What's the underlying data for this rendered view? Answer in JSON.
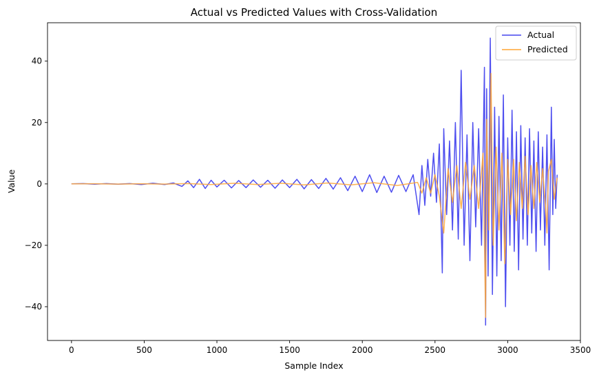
{
  "chart_data": {
    "type": "line",
    "title": "Actual vs Predicted Values with Cross-Validation",
    "xlabel": "Sample Index",
    "ylabel": "Value",
    "xlim": [
      -165,
      3500
    ],
    "ylim": [
      -51,
      52.5
    ],
    "xticks": [
      0,
      500,
      1000,
      1500,
      2000,
      2500,
      3000,
      3500
    ],
    "yticks": [
      -40,
      -20,
      0,
      20,
      40
    ],
    "xtick_labels": [
      "0",
      "500",
      "1000",
      "1500",
      "2000",
      "2500",
      "3000",
      "3500"
    ],
    "ytick_labels": [
      "−40",
      "−20",
      "0",
      "20",
      "40"
    ],
    "legend_position": "top-right",
    "grid": false,
    "series": [
      {
        "name": "Actual",
        "color": "#4444ee",
        "x": [
          0,
          80,
          160,
          240,
          320,
          400,
          480,
          560,
          640,
          700,
          760,
          800,
          840,
          880,
          920,
          960,
          1000,
          1050,
          1100,
          1150,
          1200,
          1250,
          1300,
          1350,
          1400,
          1450,
          1500,
          1550,
          1600,
          1650,
          1700,
          1750,
          1800,
          1850,
          1900,
          1950,
          2000,
          2050,
          2100,
          2150,
          2200,
          2250,
          2300,
          2350,
          2390,
          2410,
          2430,
          2450,
          2470,
          2490,
          2510,
          2530,
          2550,
          2560,
          2580,
          2600,
          2620,
          2640,
          2660,
          2680,
          2700,
          2720,
          2740,
          2760,
          2780,
          2800,
          2820,
          2840,
          2848,
          2855,
          2865,
          2880,
          2895,
          2910,
          2925,
          2940,
          2955,
          2970,
          2985,
          3000,
          3015,
          3030,
          3045,
          3060,
          3075,
          3090,
          3105,
          3120,
          3135,
          3150,
          3165,
          3180,
          3195,
          3210,
          3225,
          3240,
          3255,
          3270,
          3285,
          3300,
          3310,
          3320,
          3330,
          3340
        ],
        "values": [
          0,
          0.1,
          -0.1,
          0.1,
          -0.1,
          0.1,
          -0.2,
          0.2,
          -0.2,
          0.3,
          -0.8,
          1.0,
          -1.2,
          1.5,
          -1.5,
          1.2,
          -1.0,
          1.2,
          -1.3,
          1.1,
          -1.2,
          1.3,
          -1.1,
          1.2,
          -1.4,
          1.3,
          -1.2,
          1.5,
          -1.6,
          1.4,
          -1.5,
          1.8,
          -1.7,
          2.0,
          -2.2,
          2.5,
          -2.5,
          3.0,
          -2.8,
          2.5,
          -2.7,
          2.8,
          -2.5,
          3.0,
          -10.0,
          6.0,
          -7.0,
          8.0,
          -4.0,
          10.0,
          -6.0,
          13.0,
          -29.0,
          18.0,
          -10.0,
          14.0,
          -15.0,
          20.0,
          -18.0,
          37.0,
          -20.0,
          16.0,
          -25.0,
          20.0,
          -14.0,
          18.0,
          -20.0,
          38.0,
          -46.0,
          31.0,
          -30.0,
          47.5,
          -36.0,
          25.0,
          -30.0,
          22.0,
          -25.0,
          29.0,
          -40.0,
          15.0,
          -20.0,
          24.0,
          -22.0,
          17.0,
          -28.0,
          19.0,
          -18.0,
          15.0,
          -20.0,
          18.0,
          -16.0,
          14.0,
          -22.0,
          17.0,
          -15.0,
          12.0,
          -20.0,
          16.0,
          -28.0,
          25.0,
          -10.0,
          14.5,
          -8.0,
          3.0
        ]
      },
      {
        "name": "Predicted",
        "color": "#ffa533",
        "x": [
          0,
          160,
          320,
          480,
          640,
          800,
          960,
          1120,
          1280,
          1440,
          1600,
          1760,
          1920,
          2080,
          2240,
          2380,
          2410,
          2440,
          2470,
          2500,
          2530,
          2560,
          2590,
          2620,
          2650,
          2680,
          2710,
          2740,
          2770,
          2800,
          2830,
          2848,
          2855,
          2870,
          2885,
          2900,
          2920,
          2940,
          2960,
          2980,
          3000,
          3020,
          3040,
          3060,
          3080,
          3100,
          3120,
          3140,
          3160,
          3180,
          3200,
          3220,
          3240,
          3260,
          3270,
          3280,
          3300,
          3320,
          3340
        ],
        "values": [
          0,
          0.05,
          -0.05,
          0.05,
          -0.05,
          0.1,
          -0.2,
          0.2,
          -0.2,
          0.2,
          -0.3,
          0.3,
          -0.3,
          0.4,
          -0.5,
          0.5,
          -3.0,
          2.0,
          -3.0,
          3.0,
          -4.0,
          -16.0,
          5.0,
          -6.0,
          6.0,
          -8.0,
          7.0,
          -5.0,
          6.0,
          -8.0,
          10.0,
          -43.5,
          21.0,
          -15.0,
          36.0,
          -20.0,
          12.0,
          -15.0,
          10.0,
          -26.0,
          8.0,
          -10.0,
          8.0,
          -12.0,
          7.0,
          -8.0,
          9.0,
          -10.0,
          6.0,
          -8.0,
          7.0,
          -6.0,
          5.0,
          -7.0,
          -16.0,
          4.0,
          8.0,
          -5.0,
          2.0
        ]
      }
    ]
  }
}
